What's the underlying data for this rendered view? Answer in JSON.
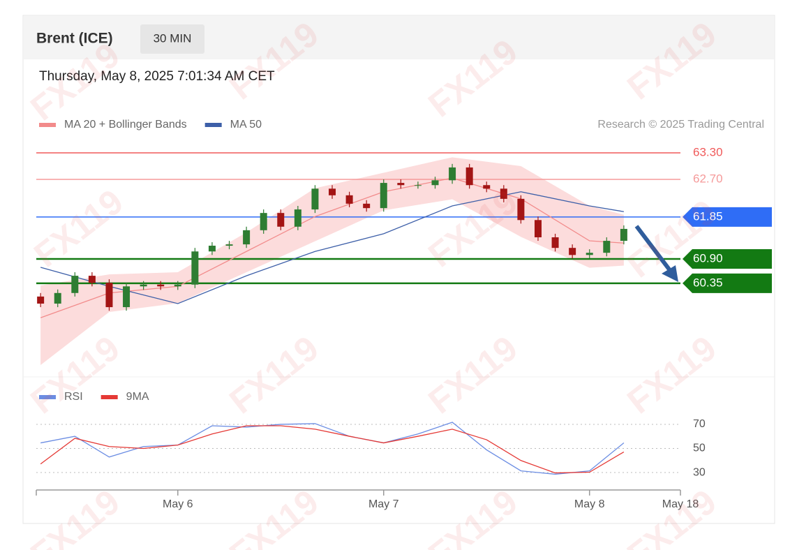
{
  "header": {
    "title": "Brent (ICE)",
    "timeframe": "30 MIN",
    "timestamp": "Thursday, May 8, 2025 7:01:34 AM CET"
  },
  "watermark": "FX119",
  "chart_data": [
    {
      "type": "candlestick",
      "credit": "Research © 2025 Trading Central",
      "x": [
        -16,
        -14,
        -12,
        -10,
        -8,
        -6,
        -4,
        -2,
        0,
        2,
        4,
        6,
        8,
        10,
        12,
        14,
        16,
        18,
        20,
        22,
        24,
        26,
        28,
        30,
        32,
        34,
        36,
        38,
        40,
        42,
        44,
        46,
        48,
        50,
        52
      ],
      "open": [
        60.05,
        59.89,
        60.13,
        60.52,
        60.36,
        59.81,
        60.28,
        60.32,
        60.28,
        60.32,
        61.07,
        61.2,
        61.23,
        61.55,
        61.94,
        61.63,
        62.02,
        62.49,
        62.34,
        62.15,
        62.05,
        62.62,
        62.57,
        62.57,
        62.68,
        62.97,
        62.57,
        62.49,
        62.26,
        61.78,
        61.39,
        61.15,
        60.99,
        61.04,
        61.31
      ],
      "high": [
        60.13,
        60.21,
        60.6,
        60.6,
        60.44,
        60.36,
        60.4,
        60.4,
        60.4,
        61.15,
        61.28,
        61.31,
        61.63,
        62.02,
        62.02,
        62.1,
        62.57,
        62.57,
        62.42,
        62.23,
        62.7,
        62.7,
        62.65,
        62.76,
        63.05,
        63.05,
        62.65,
        62.57,
        62.34,
        61.86,
        61.47,
        61.23,
        61.12,
        61.39,
        61.66
      ],
      "low": [
        59.81,
        59.81,
        60.05,
        60.28,
        59.73,
        59.73,
        60.2,
        60.2,
        60.2,
        60.24,
        60.99,
        61.12,
        61.15,
        61.47,
        61.55,
        61.55,
        61.94,
        62.26,
        62.07,
        61.97,
        61.97,
        62.49,
        62.49,
        62.49,
        62.6,
        62.49,
        62.41,
        62.18,
        61.7,
        61.31,
        61.07,
        60.91,
        60.91,
        60.96,
        61.23
      ],
      "close": [
        59.89,
        60.13,
        60.52,
        60.36,
        59.81,
        60.28,
        60.32,
        60.28,
        60.32,
        61.07,
        61.2,
        61.23,
        61.55,
        61.94,
        61.63,
        62.02,
        62.49,
        62.34,
        62.15,
        62.05,
        62.62,
        62.57,
        62.57,
        62.68,
        62.97,
        62.57,
        62.49,
        62.26,
        61.78,
        61.39,
        61.15,
        60.99,
        61.04,
        61.31,
        61.58
      ],
      "color_up": "#2e7d32",
      "color_down": "#a31515",
      "lines": [
        {
          "name": "MA 20 + Bollinger Bands",
          "color": "#f28b8b",
          "band_color": "#fbd3d3",
          "x": [
            -16,
            -8,
            0,
            8,
            16,
            24,
            32,
            40,
            48,
            52
          ],
          "values": [
            59.57,
            60.13,
            60.28,
            61.07,
            61.86,
            62.42,
            62.73,
            62.26,
            61.31,
            61.26
          ],
          "band_upper": [
            60.3,
            60.55,
            60.6,
            61.5,
            62.5,
            62.85,
            63.2,
            63.0,
            62.1,
            61.9
          ],
          "band_lower": [
            58.5,
            59.7,
            59.9,
            60.6,
            61.3,
            62.0,
            62.25,
            61.4,
            60.7,
            60.75
          ]
        },
        {
          "name": "MA 50",
          "color": "#3d5fa8",
          "x": [
            -16,
            -8,
            0,
            8,
            16,
            24,
            32,
            40,
            48,
            52
          ],
          "values": [
            60.71,
            60.28,
            59.89,
            60.52,
            61.07,
            61.47,
            62.1,
            62.42,
            62.1,
            61.97
          ]
        }
      ],
      "levels": [
        {
          "value": 63.3,
          "label": "63.30",
          "color": "#f05a5a",
          "style": "text"
        },
        {
          "value": 62.7,
          "label": "62.70",
          "color": "#f59a9a",
          "style": "text"
        },
        {
          "value": 61.85,
          "label": "61.85",
          "color": "#2f6df6",
          "style": "tag"
        },
        {
          "value": 60.9,
          "label": "60.90",
          "color": "#137a13",
          "style": "tag"
        },
        {
          "value": 60.35,
          "label": "60.35",
          "color": "#137a13",
          "style": "tag"
        }
      ],
      "xlim": [
        -16.5,
        58.6
      ],
      "ylim": [
        58.39,
        63.6
      ]
    },
    {
      "type": "line",
      "x": [
        -16,
        -12,
        -8,
        -4,
        0,
        4,
        8,
        12,
        16,
        20,
        24,
        28,
        32,
        36,
        40,
        44,
        48,
        52
      ],
      "series": [
        {
          "name": "RSI",
          "color": "#6b8de3",
          "values": [
            54.6,
            60.1,
            42.9,
            51.6,
            52.8,
            68.8,
            67.7,
            70,
            70.6,
            60.1,
            54.6,
            62,
            71.7,
            48.8,
            31.4,
            28.6,
            31.4,
            54.6
          ]
        },
        {
          "name": "9MA",
          "color": "#e53935",
          "values": [
            37.1,
            58.4,
            51.6,
            50,
            52.8,
            62,
            68.8,
            68.8,
            66,
            60.1,
            54.6,
            60.1,
            66,
            57.2,
            40,
            29.7,
            30.3,
            47.1
          ]
        }
      ],
      "xlim": [
        -16.5,
        58.6
      ],
      "ylim": [
        16.7,
        80.4
      ],
      "yticks": [
        30,
        50,
        70
      ],
      "xticks": [
        {
          "value": 0,
          "label": "May 6"
        },
        {
          "value": 24,
          "label": "May 7"
        },
        {
          "value": 48,
          "label": "May 8"
        },
        {
          "value": 58.6,
          "label": "May 18"
        }
      ]
    }
  ]
}
